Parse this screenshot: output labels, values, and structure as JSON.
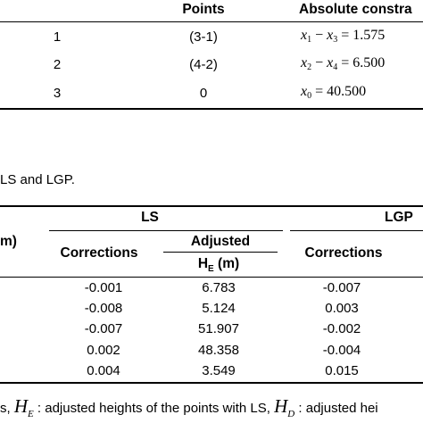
{
  "top_table": {
    "headers": {
      "points": "Points",
      "constraint": "Absolute constra"
    },
    "rows": [
      {
        "index": "1",
        "points": "(3-1)",
        "constraint": {
          "a": "x",
          "a_sub": "1",
          "op": " − ",
          "b": "x",
          "b_sub": "3",
          "eq": " = ",
          "val": "1.575"
        }
      },
      {
        "index": "2",
        "points": "(4-2)",
        "constraint": {
          "a": "x",
          "a_sub": "2",
          "op": " − ",
          "b": "x",
          "b_sub": "4",
          "eq": " = ",
          "val": "6.500"
        }
      },
      {
        "index": "3",
        "points": "0",
        "constraint": {
          "a": "x",
          "a_sub": "0",
          "op": "",
          "b": "",
          "b_sub": "",
          "eq": " = ",
          "val": "40.500"
        }
      }
    ]
  },
  "caption": "LS and LGP.",
  "bottom_table": {
    "group_ls": "LS",
    "group_lgp": "LGP",
    "left_partial_header": "m)",
    "col_corrections": "Corrections",
    "col_adjusted": "Adjusted",
    "col_adjusted_unit_main": "H",
    "col_adjusted_unit_sub": "E",
    "col_adjusted_unit_rest": " (m)",
    "col_corrections_lgp": "Corrections",
    "rows": [
      {
        "ls_corr": "-0.001",
        "ls_adj": "6.783",
        "lgp_corr": "-0.007"
      },
      {
        "ls_corr": "-0.008",
        "ls_adj": "5.124",
        "lgp_corr": "0.003"
      },
      {
        "ls_corr": "-0.007",
        "ls_adj": "51.907",
        "lgp_corr": "-0.002"
      },
      {
        "ls_corr": "0.002",
        "ls_adj": "48.358",
        "lgp_corr": "-0.004"
      },
      {
        "ls_corr": "0.004",
        "ls_adj": "3.549",
        "lgp_corr": "0.015"
      }
    ]
  },
  "footnote": {
    "prefix": "s, ",
    "sym1": "H",
    "sym1_sub": "E",
    "text1": " : adjusted heights of the points with LS, ",
    "sym2": "H",
    "sym2_sub": "D",
    "text2": " : adjusted hei"
  }
}
